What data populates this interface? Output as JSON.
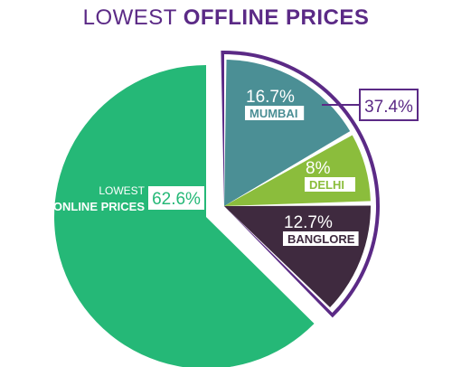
{
  "title": {
    "light": "LOWEST",
    "bold": "OFFLINE PRICES"
  },
  "colors": {
    "title": "#5b2a86",
    "online": "#25b877",
    "mumbai": "#4b8f95",
    "delhi": "#8bbd3c",
    "banglore": "#3f2a3f",
    "offline_border": "#5b2a86",
    "callout_bg": "#5b2a86"
  },
  "chart_data": {
    "type": "pie",
    "title": "LOWEST OFFLINE PRICES",
    "slices": [
      {
        "label": "LOWEST ONLINE PRICES",
        "label_line1": "LOWEST",
        "label_line2": "ONLINE PRICES",
        "value": 62.6,
        "value_text": "62.6%"
      },
      {
        "label": "MUMBAI",
        "value": 16.7,
        "value_text": "16.7%"
      },
      {
        "label": "DELHI",
        "value": 8,
        "value_text": "8%"
      },
      {
        "label": "BANGLORE",
        "value": 12.7,
        "value_text": "12.7%"
      }
    ],
    "offline_group": {
      "value": 37.4,
      "value_text": "37.4%",
      "members": [
        "MUMBAI",
        "DELHI",
        "BANGLORE"
      ]
    }
  }
}
